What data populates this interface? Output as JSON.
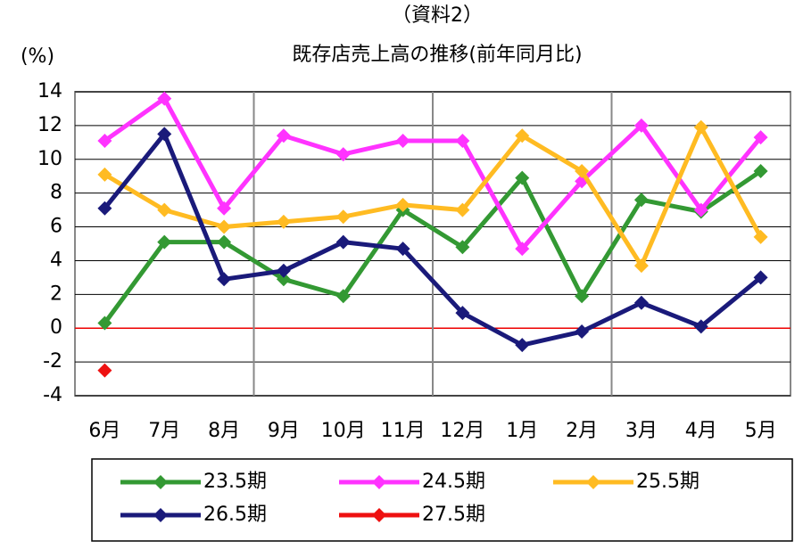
{
  "chart_data": {
    "type": "line",
    "title": "（資料2）",
    "subtitle": "既存店売上高の推移(前年同月比)",
    "y_label": "(%)",
    "categories": [
      "6月",
      "7月",
      "8月",
      "9月",
      "10月",
      "11月",
      "12月",
      "1月",
      "2月",
      "3月",
      "4月",
      "5月"
    ],
    "series": [
      {
        "name": "23.5期",
        "color": "#339933",
        "values": [
          0.3,
          5.1,
          5.1,
          2.9,
          1.9,
          7.0,
          4.8,
          8.9,
          1.9,
          7.6,
          6.9,
          9.3
        ]
      },
      {
        "name": "24.5期",
        "color": "#ff33ff",
        "values": [
          11.1,
          13.6,
          7.1,
          11.4,
          10.3,
          11.1,
          11.1,
          4.7,
          8.7,
          12.0,
          7.0,
          11.3
        ]
      },
      {
        "name": "25.5期",
        "color": "#ffbb22",
        "values": [
          9.1,
          7.0,
          6.0,
          6.3,
          6.6,
          7.3,
          7.0,
          11.4,
          9.3,
          3.7,
          11.9,
          5.4
        ]
      },
      {
        "name": "26.5期",
        "color": "#1a1a7a",
        "values": [
          7.1,
          11.5,
          2.9,
          3.4,
          5.1,
          4.7,
          0.9,
          -1.0,
          -0.2,
          1.5,
          0.1,
          3.0
        ]
      },
      {
        "name": "27.5期",
        "color": "#ee1111",
        "values": [
          -2.5,
          null,
          null,
          null,
          null,
          null,
          null,
          null,
          null,
          null,
          null,
          null
        ]
      }
    ],
    "ylim": [
      -4,
      14
    ],
    "yticks": [
      -4,
      -2,
      0,
      2,
      4,
      6,
      8,
      10,
      12,
      14
    ],
    "grid": true,
    "zero_line_color": "#ee0000",
    "negative_tick_color": "#ee0000",
    "legend": "bottom"
  }
}
